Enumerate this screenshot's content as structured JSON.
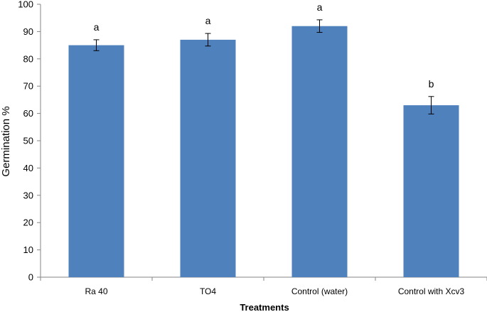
{
  "chart_data": {
    "type": "bar",
    "title": "",
    "xlabel": "Treatments",
    "ylabel": "Germination %",
    "ylim": [
      0,
      100
    ],
    "yticks": [
      0,
      10,
      20,
      30,
      40,
      50,
      60,
      70,
      80,
      90,
      100
    ],
    "categories": [
      "Ra 40",
      "TO4",
      "Control (water)",
      "Control with Xcv3"
    ],
    "values": [
      85,
      87,
      92,
      63
    ],
    "errors": [
      2.0,
      2.3,
      2.3,
      3.2
    ],
    "significance": [
      "a",
      "a",
      "a",
      "b"
    ],
    "bar_color": "#4f81bd",
    "grid": false
  }
}
